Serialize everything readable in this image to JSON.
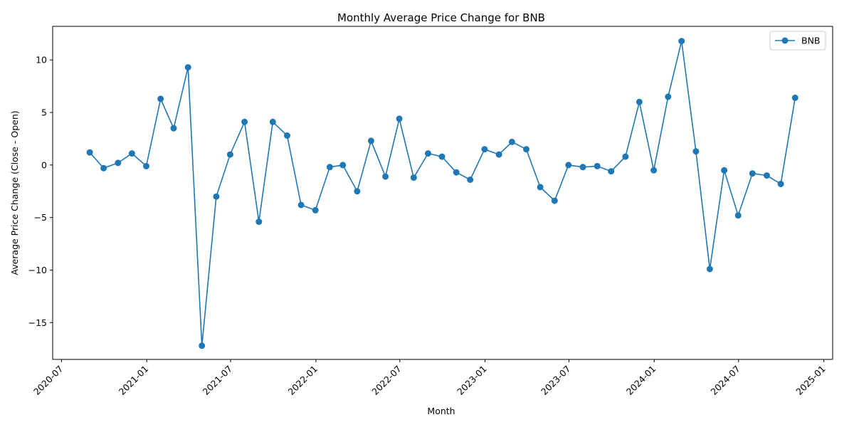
{
  "chart_data": {
    "type": "line",
    "title": "Monthly Average Price Change for BNB",
    "xlabel": "Month",
    "ylabel": "Average Price Change (Close - Open)",
    "x_type": "date",
    "xlim": [
      "2020-06-12",
      "2025-01-20"
    ],
    "ylim": [
      -18.5,
      13.2
    ],
    "xticks": [
      "2020-07",
      "2021-01",
      "2021-07",
      "2022-01",
      "2022-07",
      "2023-01",
      "2023-07",
      "2024-01",
      "2024-07",
      "2025-01"
    ],
    "yticks": [
      -15,
      -10,
      -5,
      0,
      5,
      10
    ],
    "ytick_labels": [
      "−15",
      "−10",
      "−5",
      "0",
      "5",
      "10"
    ],
    "grid": false,
    "legend_position": "top-right",
    "color": "#1f77b4",
    "series": [
      {
        "name": "BNB",
        "marker": "circle",
        "x": [
          "2020-08-31",
          "2020-09-30",
          "2020-10-31",
          "2020-11-30",
          "2020-12-31",
          "2021-01-31",
          "2021-02-28",
          "2021-03-31",
          "2021-04-30",
          "2021-05-31",
          "2021-06-30",
          "2021-07-31",
          "2021-08-31",
          "2021-09-30",
          "2021-10-31",
          "2021-11-30",
          "2021-12-31",
          "2022-01-31",
          "2022-02-28",
          "2022-03-31",
          "2022-04-30",
          "2022-05-31",
          "2022-06-30",
          "2022-07-31",
          "2022-08-31",
          "2022-09-30",
          "2022-10-31",
          "2022-11-30",
          "2022-12-31",
          "2023-01-31",
          "2023-02-28",
          "2023-03-31",
          "2023-04-30",
          "2023-05-31",
          "2023-06-30",
          "2023-07-31",
          "2023-08-31",
          "2023-09-30",
          "2023-10-31",
          "2023-11-30",
          "2023-12-31",
          "2024-01-31",
          "2024-02-29",
          "2024-03-31",
          "2024-04-30",
          "2024-05-31",
          "2024-06-30",
          "2024-07-31",
          "2024-08-31",
          "2024-09-30",
          "2024-10-31"
        ],
        "y": [
          1.2,
          -0.3,
          0.2,
          1.1,
          -0.1,
          6.3,
          3.5,
          9.3,
          -17.2,
          -3.0,
          1.0,
          4.1,
          -5.4,
          4.1,
          2.8,
          -3.8,
          -4.3,
          -0.2,
          0.0,
          -2.5,
          2.3,
          -1.1,
          4.4,
          -1.2,
          1.1,
          0.8,
          -0.7,
          -1.4,
          1.5,
          1.0,
          2.2,
          1.5,
          -2.1,
          -3.4,
          0.0,
          -0.2,
          -0.1,
          -0.6,
          0.8,
          6.0,
          -0.5,
          6.5,
          11.8,
          1.3,
          -9.9,
          -0.5,
          -4.8,
          -0.8,
          -1.0,
          -1.8,
          6.4
        ]
      }
    ]
  }
}
